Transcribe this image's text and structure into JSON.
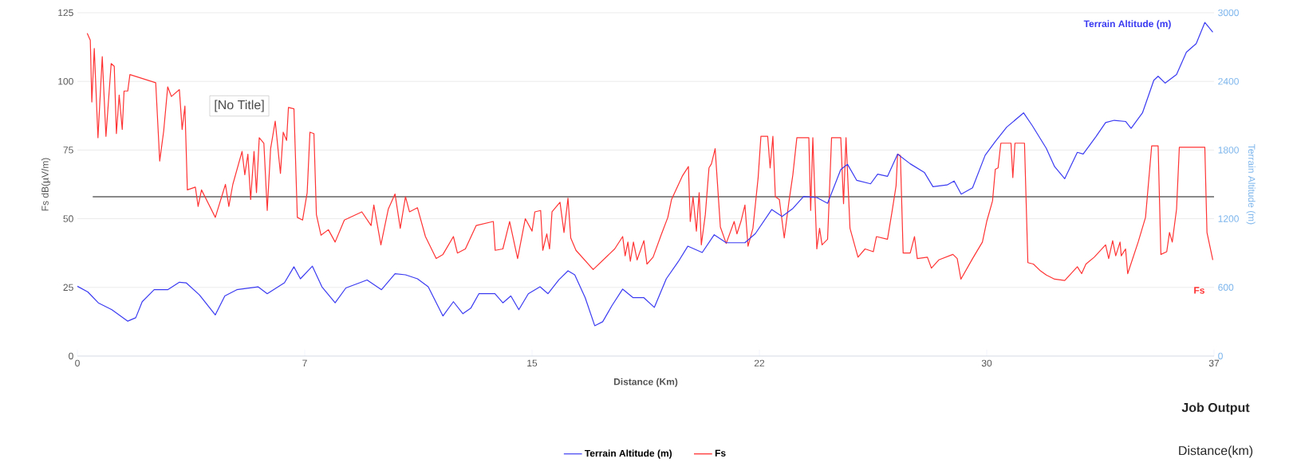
{
  "chart_data": {
    "type": "line",
    "xlabel": "Distance (Km)",
    "ylabel": "Fs dB(µV/m)",
    "y2label": "Terrain Altitude (m)",
    "xlim": [
      0,
      37
    ],
    "xticks": [
      0,
      {
        "value": 7.4,
        "label": "7"
      },
      {
        "value": 14.8,
        "label": "15"
      },
      {
        "value": 22.2,
        "label": "22"
      },
      {
        "value": 29.6,
        "label": "30"
      },
      37
    ],
    "ylim": [
      0,
      125
    ],
    "yticks": [
      0,
      25,
      50,
      75,
      100,
      125
    ],
    "y2lim": [
      0,
      3000
    ],
    "y2ticks": [
      0,
      600,
      1200,
      1800,
      2400,
      3000
    ],
    "grid": "y",
    "legend": "bottom",
    "ref_lines": [
      {
        "axis": "y",
        "value": 58,
        "color": "#000000"
      }
    ],
    "annotations": [
      "[No Title]",
      "Job Output",
      "Distance(km)"
    ],
    "series": [
      {
        "name": "Terrain Altitude (m)",
        "color": "#3b3bf2",
        "axis": "y2",
        "x": [
          0,
          0.34,
          0.68,
          1.12,
          1.64,
          1.9,
          2.11,
          2.5,
          2.94,
          3.32,
          3.54,
          3.97,
          4.49,
          4.8,
          5.19,
          5.88,
          6.18,
          6.74,
          7.05,
          7.26,
          7.65,
          7.96,
          8.39,
          8.74,
          9.43,
          9.9,
          10.34,
          10.68,
          11.07,
          11.42,
          11.9,
          12.24,
          12.55,
          12.81,
          13.07,
          13.59,
          13.85,
          14.11,
          14.37,
          14.68,
          15.06,
          15.32,
          15.67,
          15.97,
          16.19,
          16.53,
          16.84,
          17.1,
          17.4,
          17.75,
          18.09,
          18.44,
          18.78,
          19.17,
          19.56,
          19.87,
          20.34,
          20.73,
          21.12,
          21.73,
          22.07,
          22.6,
          22.94,
          23.29,
          23.64,
          24.07,
          24.42,
          24.85,
          25.07,
          25.37,
          25.82,
          26.05,
          26.37,
          26.7,
          27.11,
          27.57,
          27.85,
          28.31,
          28.54,
          28.77,
          29.14,
          29.55,
          29.88,
          30.25,
          30.8,
          31.08,
          31.54,
          31.81,
          32.14,
          32.55,
          32.74,
          33.15,
          33.47,
          33.75,
          34.12,
          34.3,
          34.67,
          35.04,
          35.18,
          35.41,
          35.78,
          36.1,
          36.42,
          36.7,
          36.96
        ],
        "values": [
          610,
          560,
          465,
          405,
          305,
          335,
          475,
          580,
          580,
          645,
          640,
          535,
          360,
          525,
          580,
          605,
          545,
          640,
          780,
          675,
          785,
          605,
          465,
          595,
          665,
          580,
          720,
          710,
          675,
          605,
          350,
          475,
          370,
          420,
          545,
          545,
          465,
          525,
          405,
          545,
          605,
          545,
          665,
          745,
          710,
          510,
          265,
          300,
          440,
          585,
          510,
          510,
          425,
          675,
          825,
          960,
          905,
          1060,
          990,
          990,
          1070,
          1280,
          1220,
          1290,
          1395,
          1385,
          1335,
          1630,
          1675,
          1535,
          1505,
          1590,
          1570,
          1765,
          1680,
          1605,
          1480,
          1495,
          1530,
          1415,
          1470,
          1755,
          1875,
          2000,
          2125,
          2015,
          1815,
          1655,
          1550,
          1780,
          1765,
          1915,
          2040,
          2060,
          2050,
          1990,
          2125,
          2410,
          2445,
          2385,
          2460,
          2655,
          2730,
          2915,
          2830
        ]
      },
      {
        "name": "Fs",
        "color": "#ff3333",
        "x": [
          0.32,
          0.42,
          0.47,
          0.55,
          0.67,
          0.81,
          0.93,
          1.1,
          1.2,
          1.27,
          1.36,
          1.46,
          1.52,
          1.64,
          1.71,
          2.55,
          2.68,
          2.81,
          2.94,
          3.06,
          3.32,
          3.41,
          3.5,
          3.58,
          3.84,
          3.93,
          4.04,
          4.49,
          4.82,
          4.93,
          5.06,
          5.36,
          5.45,
          5.55,
          5.64,
          5.75,
          5.83,
          5.92,
          6.07,
          6.18,
          6.29,
          6.44,
          6.61,
          6.7,
          6.81,
          6.87,
          7.05,
          7.16,
          7.33,
          7.48,
          7.57,
          7.7,
          7.78,
          7.93,
          8.17,
          8.39,
          8.69,
          9.26,
          9.56,
          9.65,
          9.88,
          10.12,
          10.34,
          10.51,
          10.68,
          10.81,
          11.07,
          11.33,
          11.68,
          11.9,
          12.24,
          12.37,
          12.63,
          12.98,
          13.54,
          13.6,
          13.85,
          14.07,
          14.33,
          14.58,
          14.8,
          14.89,
          15.08,
          15.15,
          15.28,
          15.37,
          15.45,
          15.71,
          15.84,
          15.97,
          16.06,
          16.23,
          16.79,
          17.49,
          17.75,
          17.83,
          17.92,
          18.0,
          18.1,
          18.22,
          18.44,
          18.54,
          18.74,
          19.0,
          19.22,
          19.34,
          19.69,
          19.89,
          19.95,
          20.04,
          20.15,
          20.24,
          20.31,
          20.44,
          20.56,
          20.64,
          20.76,
          20.93,
          21.12,
          21.38,
          21.47,
          21.6,
          21.73,
          21.83,
          21.99,
          22.16,
          22.25,
          22.47,
          22.55,
          22.64,
          22.72,
          22.85,
          23.01,
          23.16,
          23.29,
          23.42,
          23.81,
          23.87,
          23.94,
          24.07,
          24.16,
          24.24,
          24.42,
          24.55,
          24.85,
          24.94,
          25.02,
          25.15,
          25.41,
          25.64,
          25.91,
          26.01,
          26.37,
          26.51,
          26.65,
          26.7,
          26.79,
          26.88,
          27.11,
          27.25,
          27.34,
          27.67,
          27.8,
          28.04,
          28.5,
          28.64,
          28.76,
          29.14,
          29.46,
          29.6,
          29.79,
          29.88,
          29.97,
          30.06,
          30.39,
          30.45,
          30.52,
          30.83,
          30.94,
          31.12,
          31.35,
          31.54,
          31.81,
          32.14,
          32.55,
          32.69,
          32.83,
          33.1,
          33.47,
          33.57,
          33.7,
          33.8,
          33.94,
          33.98,
          34.12,
          34.19,
          34.53,
          34.77,
          34.97,
          35.18,
          35.27,
          35.46,
          35.55,
          35.64,
          35.78,
          35.87,
          36.7,
          36.77,
          36.96
        ],
        "values": [
          117.5,
          115,
          92.5,
          112,
          79.5,
          109,
          80,
          106.5,
          105.5,
          81,
          95,
          82.5,
          96.5,
          96.5,
          102.5,
          99.5,
          71,
          82,
          98,
          94.5,
          97,
          82.5,
          91,
          60.5,
          61.5,
          54.5,
          60.5,
          50.5,
          62.5,
          54.5,
          62.5,
          74.5,
          66,
          73.5,
          57,
          74.5,
          59.5,
          79.5,
          77.5,
          53,
          75.5,
          85.5,
          66.5,
          81.5,
          78.5,
          90.5,
          90,
          50.5,
          49.5,
          59.5,
          81.5,
          81,
          51.5,
          44,
          46,
          41.5,
          49.5,
          52.5,
          47.5,
          55,
          40.5,
          53.5,
          59,
          46.5,
          58,
          52.5,
          54,
          43.5,
          35.5,
          37,
          43.5,
          37.5,
          39,
          47.5,
          49,
          38.5,
          39,
          49,
          35.5,
          50,
          45.5,
          52.5,
          53,
          38.5,
          44.5,
          39,
          52.5,
          56,
          45,
          57.5,
          43,
          38.5,
          31.5,
          39,
          43.5,
          36.5,
          41.5,
          34.5,
          41.5,
          35,
          42,
          33.5,
          36,
          44,
          50.5,
          57,
          65.5,
          69,
          49,
          58,
          45.5,
          59.5,
          40.5,
          51.5,
          68.5,
          70,
          75.5,
          47,
          41,
          49,
          44.5,
          49,
          55,
          40,
          46.5,
          65,
          80,
          80,
          68.5,
          80,
          58,
          57,
          43,
          56,
          66,
          79.5,
          79.5,
          53,
          79.5,
          39,
          46.5,
          40.5,
          42.5,
          79.5,
          79.5,
          55.5,
          79.5,
          46.5,
          36,
          39,
          38,
          43.5,
          42.5,
          52,
          62,
          73.5,
          73,
          37.5,
          37.5,
          43.5,
          35.5,
          36,
          32,
          35,
          37,
          35.5,
          28,
          35.5,
          41.5,
          49,
          56.5,
          68,
          68.5,
          77.5,
          77.5,
          65,
          77.5,
          77.5,
          34,
          33.5,
          31,
          29.5,
          28,
          27.5,
          32.5,
          30,
          33.5,
          36,
          40.5,
          35.5,
          42,
          36.5,
          41.5,
          36.5,
          39,
          30,
          41.5,
          50.5,
          76.5,
          76.5,
          37,
          38,
          45,
          41.5,
          53.5,
          76,
          76,
          45,
          35
        ]
      }
    ]
  }
}
